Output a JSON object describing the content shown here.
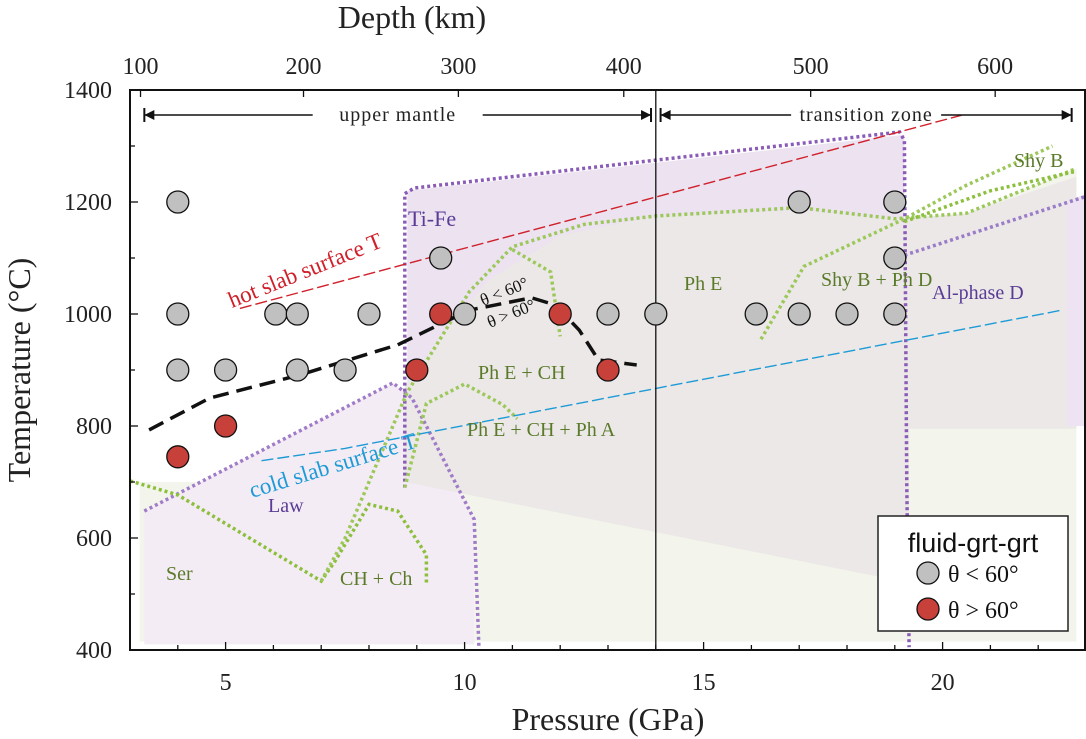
{
  "chart_data": {
    "type": "scatter",
    "title": "",
    "xlabel": "Pressure (GPa)",
    "ylabel": "Temperature (°C)",
    "top_xlabel": "Depth (km)",
    "xlim": [
      3,
      23
    ],
    "ylim": [
      400,
      1400
    ],
    "x_ticks": [
      5,
      10,
      15,
      20
    ],
    "y_ticks": [
      400,
      600,
      800,
      1000,
      1200,
      1400
    ],
    "top_ticks": [
      {
        "label": "100",
        "pressure": 3.22
      },
      {
        "label": "200",
        "pressure": 6.63
      },
      {
        "label": "300",
        "pressure": 9.87
      },
      {
        "label": "400",
        "pressure": 13.33
      },
      {
        "label": "500",
        "pressure": 17.24
      },
      {
        "label": "600",
        "pressure": 21.1
      }
    ],
    "grid": false,
    "legend": {
      "title": "fluid-grt-grt",
      "placement": "bottom-right",
      "entries": [
        {
          "label": "θ < 60°",
          "color": "#c0c0c0"
        },
        {
          "label": "θ > 60°",
          "color": "#c8403a"
        }
      ]
    },
    "series": [
      {
        "name": "θ < 60°",
        "color": "#c0c0c0",
        "points": [
          [
            4,
            1200
          ],
          [
            4,
            1000
          ],
          [
            4,
            900
          ],
          [
            5,
            900
          ],
          [
            6.05,
            1000
          ],
          [
            6.5,
            1000
          ],
          [
            8,
            1000
          ],
          [
            6.5,
            900
          ],
          [
            7.5,
            900
          ],
          [
            9.5,
            1100
          ],
          [
            10,
            1000
          ],
          [
            13,
            1000
          ],
          [
            14,
            1000
          ],
          [
            16.1,
            1000
          ],
          [
            17,
            1000
          ],
          [
            18,
            1000
          ],
          [
            19,
            1000
          ],
          [
            17,
            1200
          ],
          [
            19,
            1200
          ],
          [
            19,
            1100
          ]
        ]
      },
      {
        "name": "θ > 60°",
        "color": "#c8403a",
        "points": [
          [
            4,
            745
          ],
          [
            5,
            800
          ],
          [
            9,
            900
          ],
          [
            9.5,
            1000
          ],
          [
            12,
            1000
          ],
          [
            13,
            900
          ]
        ]
      }
    ],
    "zones": [
      {
        "label": "upper mantle",
        "from": 3.3,
        "to": 13.9
      },
      {
        "label": "transition zone",
        "from": 14.1,
        "to": 22.7
      }
    ],
    "boundary_line": {
      "pressure": 14
    },
    "lines": [
      {
        "name": "hot slab surface T",
        "color": "#d0202a",
        "points": [
          [
            5.3,
            1010
          ],
          [
            20.4,
            1355
          ]
        ]
      },
      {
        "name": "cold slab surface T",
        "color": "#1e9bd7",
        "points": [
          [
            5.75,
            738
          ],
          [
            7.5,
            760
          ],
          [
            22.5,
            1007
          ]
        ]
      },
      {
        "name": "θ = 60° boundary",
        "color": "#111111",
        "points": [
          [
            3.4,
            793
          ],
          [
            4.67,
            850
          ],
          [
            6.55,
            891
          ],
          [
            8.6,
            945
          ],
          [
            10.1,
            1007
          ],
          [
            11.4,
            1029
          ],
          [
            11.9,
            1016
          ],
          [
            12.4,
            971
          ],
          [
            12.8,
            918
          ],
          [
            13.6,
            909
          ]
        ]
      }
    ],
    "regions": [
      {
        "name": "Ser field",
        "fill": "#f3f5ec",
        "points": [
          [
            3.2,
            700
          ],
          [
            3.2,
            415
          ],
          [
            22.8,
            415
          ],
          [
            22.8,
            1260
          ],
          [
            20.5,
            1180
          ],
          [
            19.3,
            1160
          ],
          [
            8.8,
            700
          ]
        ]
      },
      {
        "name": "Ti-Fe field",
        "fill": "#ece2f0",
        "points": [
          [
            8.8,
            1220
          ],
          [
            19.2,
            1320
          ],
          [
            19.2,
            690
          ],
          [
            8.8,
            690
          ]
        ]
      },
      {
        "name": "Law field",
        "fill": "#f4ecf4",
        "points": [
          [
            3.3,
            648
          ],
          [
            8.5,
            877
          ],
          [
            8.9,
            850
          ],
          [
            10.2,
            633
          ],
          [
            10.2,
            410
          ],
          [
            3.3,
            410
          ]
        ]
      },
      {
        "name": "Ph E field",
        "fill": "#ebe8e7",
        "points": [
          [
            8.75,
            730
          ],
          [
            8.75,
            870
          ],
          [
            9.5,
            960
          ],
          [
            10.5,
            1060
          ],
          [
            12,
            1140
          ],
          [
            14,
            1175
          ],
          [
            17,
            1185
          ],
          [
            19,
            1170
          ],
          [
            20.5,
            1180
          ],
          [
            22.8,
            1245
          ],
          [
            22.8,
            795
          ],
          [
            19.3,
            795
          ],
          [
            19.3,
            520
          ],
          [
            8.75,
            700
          ]
        ]
      },
      {
        "name": "Al-phase D field",
        "fill": "#eee3f2",
        "points": [
          [
            22.6,
            1200
          ],
          [
            23,
            1215
          ],
          [
            23,
            800
          ],
          [
            22.6,
            800
          ]
        ]
      }
    ],
    "dotted_boundaries": [
      {
        "color": "#8a5cb8",
        "points": [
          [
            8.75,
            690
          ],
          [
            8.75,
            1215
          ],
          [
            8.95,
            1225
          ],
          [
            19.1,
            1325
          ],
          [
            19.2,
            1310
          ],
          [
            19.25,
            690
          ],
          [
            19.3,
            405
          ]
        ]
      },
      {
        "color": "#a07cc8",
        "points": [
          [
            3.3,
            648
          ],
          [
            8.5,
            877
          ],
          [
            8.9,
            850
          ],
          [
            10.2,
            633
          ],
          [
            10.3,
            405
          ]
        ]
      },
      {
        "color": "#9a7cc8",
        "points": [
          [
            19.2,
            1105
          ],
          [
            23,
            1210
          ],
          [
            23,
            800
          ]
        ]
      },
      {
        "color": "#8cbf3c",
        "points": [
          [
            3.0,
            702
          ],
          [
            4.0,
            677
          ],
          [
            7.0,
            523
          ],
          [
            7.3,
            560
          ],
          [
            8.0,
            660
          ],
          [
            8.6,
            648
          ],
          [
            9.2,
            570
          ],
          [
            9.2,
            520
          ]
        ]
      },
      {
        "color": "#9cc85a",
        "points": [
          [
            7.0,
            523
          ],
          [
            7.5,
            600
          ],
          [
            8.8,
            860
          ],
          [
            10.1,
            1040
          ],
          [
            11,
            1120
          ],
          [
            12.5,
            1160
          ],
          [
            14,
            1175
          ],
          [
            17,
            1190
          ],
          [
            19,
            1170
          ],
          [
            20.5,
            1180
          ],
          [
            22.8,
            1260
          ]
        ]
      },
      {
        "color": "#9cc85a",
        "points": [
          [
            8.75,
            690
          ],
          [
            9.2,
            840
          ],
          [
            10,
            875
          ],
          [
            10.8,
            838
          ],
          [
            11.1,
            813
          ]
        ]
      },
      {
        "color": "#9cc85a",
        "points": [
          [
            11,
            1115
          ],
          [
            11.8,
            1075
          ],
          [
            12,
            960
          ]
        ]
      },
      {
        "color": "#9cc85a",
        "points": [
          [
            16.2,
            955
          ],
          [
            17.1,
            1085
          ],
          [
            19.2,
            1170
          ],
          [
            20.5,
            1230
          ],
          [
            22.3,
            1300
          ]
        ]
      },
      {
        "color": "#8cbf3c",
        "points": [
          [
            19.2,
            1165
          ],
          [
            21,
            1220
          ],
          [
            22.8,
            1255
          ]
        ]
      }
    ],
    "annotations": [
      {
        "id": "ti_fe",
        "text": "Ti-Fe",
        "color": "#5a3c96"
      },
      {
        "id": "law",
        "text": "Law",
        "color": "#5a3c96"
      },
      {
        "id": "ser",
        "text": "Ser",
        "color": "#5a7a2a"
      },
      {
        "id": "ch_ch",
        "text": "CH + Ch",
        "color": "#5a7a2a"
      },
      {
        "id": "phe_ch",
        "text": "Ph E + CH",
        "color": "#5a7a2a"
      },
      {
        "id": "phe_ch_pha",
        "text": "Ph E + CH + Ph A",
        "color": "#5a7a2a"
      },
      {
        "id": "phe",
        "text": "Ph E",
        "color": "#5a7a2a"
      },
      {
        "id": "shyb_phd",
        "text": "Shy B + Ph D",
        "color": "#5a7a2a"
      },
      {
        "id": "shyb",
        "text": "Shy B",
        "color": "#5a7a2a"
      },
      {
        "id": "alphd",
        "text": "Al-phase D",
        "color": "#5a3c96"
      },
      {
        "id": "hot",
        "text": "hot slab surface T",
        "color": "#d0202a"
      },
      {
        "id": "cold",
        "text": "cold slab surface T",
        "color": "#1e9bd7"
      },
      {
        "id": "lt60",
        "text": "θ < 60°",
        "color": "#111111"
      },
      {
        "id": "gt60",
        "text": "θ > 60°",
        "color": "#111111"
      }
    ]
  }
}
